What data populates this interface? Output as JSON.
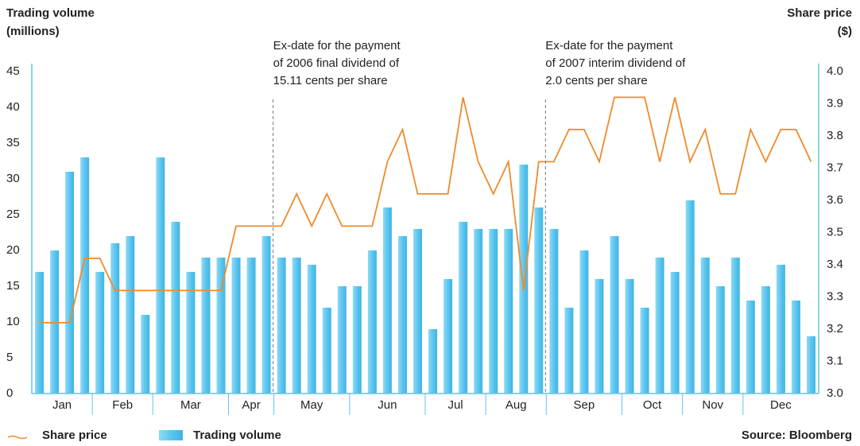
{
  "chart_data": {
    "type": "bar",
    "y_title": [
      "Trading volume",
      "(millions)"
    ],
    "y2_title": [
      "Share price",
      "($)"
    ],
    "source": "Source: Bloomberg",
    "categories": [
      "Jan",
      null,
      null,
      null,
      "Feb",
      null,
      null,
      null,
      "Mar",
      null,
      null,
      null,
      null,
      "Apr",
      null,
      null,
      "May",
      null,
      null,
      null,
      null,
      "Jun",
      null,
      null,
      null,
      null,
      "Jul",
      null,
      null,
      null,
      "Aug",
      null,
      null,
      null,
      "Sep",
      null,
      null,
      null,
      null,
      "Oct",
      null,
      null,
      null,
      "Nov",
      null,
      null,
      null,
      "Dec",
      null,
      null,
      null,
      null
    ],
    "series": [
      {
        "name": "Share price",
        "type": "line",
        "axis": "y2",
        "color": "#f08a2a",
        "values": [
          3.22,
          3.22,
          3.22,
          3.42,
          3.42,
          3.32,
          3.32,
          3.32,
          3.32,
          3.32,
          3.32,
          3.32,
          3.32,
          3.52,
          3.52,
          3.52,
          3.52,
          3.62,
          3.52,
          3.62,
          3.52,
          3.52,
          3.52,
          3.72,
          3.82,
          3.62,
          3.62,
          3.62,
          3.92,
          3.72,
          3.62,
          3.72,
          3.32,
          3.72,
          3.72,
          3.82,
          3.82,
          3.72,
          3.92,
          3.92,
          3.92,
          3.72,
          3.92,
          3.72,
          3.82,
          3.62,
          3.62,
          3.82,
          3.72,
          3.82,
          3.82,
          3.72
        ]
      },
      {
        "name": "Trading volume",
        "type": "bar",
        "color": "#5cc6ee",
        "values": [
          17,
          20,
          31,
          33,
          17,
          21,
          22,
          11,
          33,
          24,
          17,
          19,
          19,
          19,
          19,
          22,
          19,
          19,
          18,
          12,
          15,
          15,
          20,
          26,
          22,
          23,
          9,
          16,
          24,
          23,
          23,
          23,
          32,
          26,
          23,
          12,
          20,
          16,
          22,
          16,
          12,
          19,
          17,
          27,
          19,
          15,
          19,
          13,
          15,
          18,
          13,
          8
        ]
      }
    ],
    "annotations": [
      [
        "Ex-date for the payment",
        "of 2006 final dividend of",
        "15.11 cents per share"
      ],
      [
        "Ex-date for the payment",
        "of 2007 interim dividend of",
        "2.0 cents per share"
      ]
    ],
    "ylim": [
      0,
      45
    ],
    "yticks": [
      0,
      5,
      10,
      15,
      20,
      25,
      30,
      35,
      40,
      45
    ],
    "y2lim": [
      3.0,
      4.0
    ],
    "y2ticks": [
      {
        "value": 3.0,
        "label": "3.0"
      },
      3.1,
      3.2,
      3.3,
      3.4,
      3.5,
      3.6,
      3.7,
      3.8,
      3.9,
      {
        "value": 4.0,
        "label": "4.0"
      }
    ],
    "axis_color": "#5cc6ee"
  }
}
